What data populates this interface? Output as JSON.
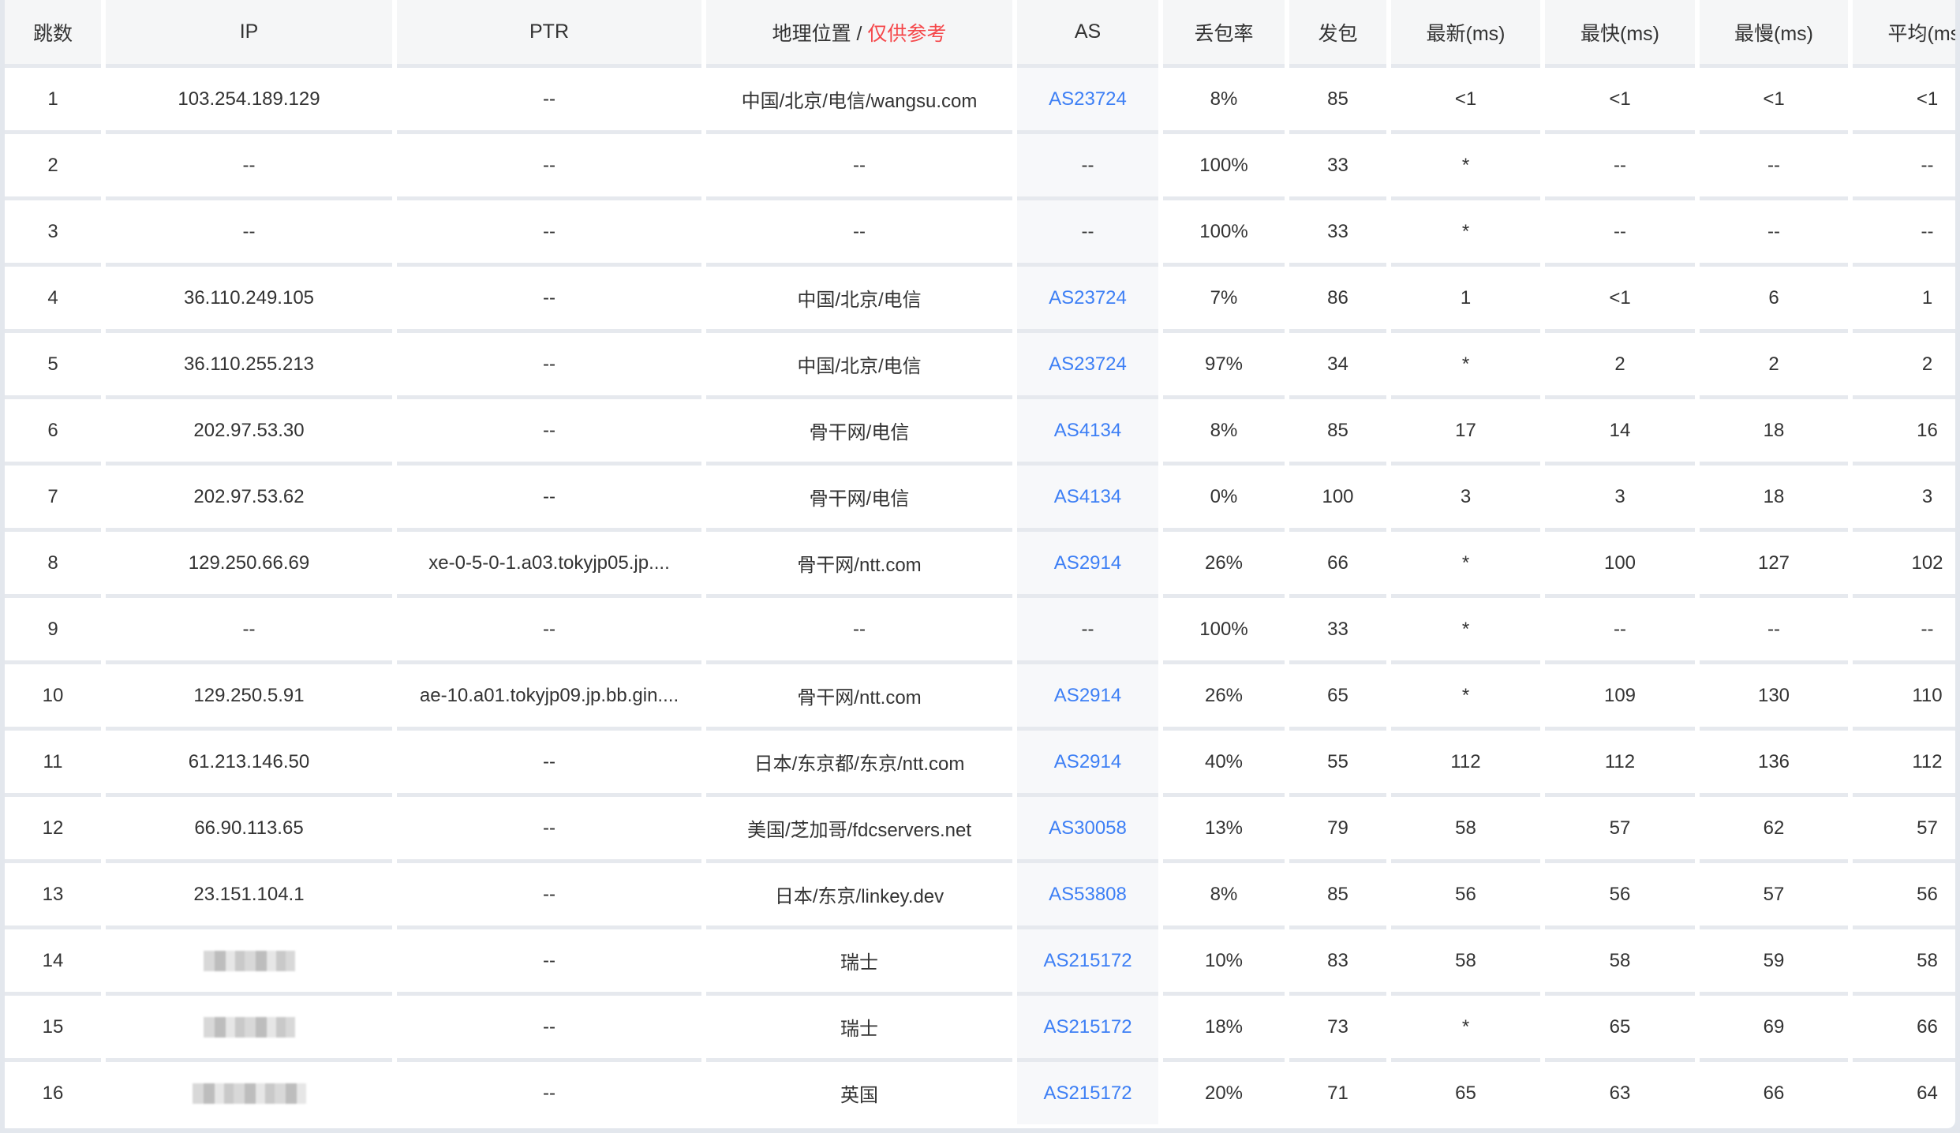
{
  "headers": {
    "hop": "跳数",
    "ip": "IP",
    "ptr": "PTR",
    "geo": "地理位置 /",
    "geo_note": "仅供参考",
    "as": "AS",
    "loss": "丢包率",
    "sent": "发包",
    "last": "最新(ms)",
    "best": "最快(ms)",
    "worst": "最慢(ms)",
    "avg": "平均(ms)"
  },
  "colors": {
    "link": "#3d7ff5",
    "note": "#f5484b"
  },
  "rows": [
    {
      "hop": "1",
      "ip": "103.254.189.129",
      "ptr": "--",
      "geo": "中国/北京/电信/wangsu.com",
      "as": "AS23724",
      "loss": "8%",
      "sent": "85",
      "last": "<1",
      "best": "<1",
      "worst": "<1",
      "avg": "<1"
    },
    {
      "hop": "2",
      "ip": "--",
      "ptr": "--",
      "geo": "--",
      "as": "--",
      "loss": "100%",
      "sent": "33",
      "last": "*",
      "best": "--",
      "worst": "--",
      "avg": "--"
    },
    {
      "hop": "3",
      "ip": "--",
      "ptr": "--",
      "geo": "--",
      "as": "--",
      "loss": "100%",
      "sent": "33",
      "last": "*",
      "best": "--",
      "worst": "--",
      "avg": "--"
    },
    {
      "hop": "4",
      "ip": "36.110.249.105",
      "ptr": "--",
      "geo": "中国/北京/电信",
      "as": "AS23724",
      "loss": "7%",
      "sent": "86",
      "last": "1",
      "best": "<1",
      "worst": "6",
      "avg": "1"
    },
    {
      "hop": "5",
      "ip": "36.110.255.213",
      "ptr": "--",
      "geo": "中国/北京/电信",
      "as": "AS23724",
      "loss": "97%",
      "sent": "34",
      "last": "*",
      "best": "2",
      "worst": "2",
      "avg": "2"
    },
    {
      "hop": "6",
      "ip": "202.97.53.30",
      "ptr": "--",
      "geo": "骨干网/电信",
      "as": "AS4134",
      "loss": "8%",
      "sent": "85",
      "last": "17",
      "best": "14",
      "worst": "18",
      "avg": "16"
    },
    {
      "hop": "7",
      "ip": "202.97.53.62",
      "ptr": "--",
      "geo": "骨干网/电信",
      "as": "AS4134",
      "loss": "0%",
      "sent": "100",
      "last": "3",
      "best": "3",
      "worst": "18",
      "avg": "3"
    },
    {
      "hop": "8",
      "ip": "129.250.66.69",
      "ptr": "xe-0-5-0-1.a03.tokyjp05.jp....",
      "geo": "骨干网/ntt.com",
      "as": "AS2914",
      "loss": "26%",
      "sent": "66",
      "last": "*",
      "best": "100",
      "worst": "127",
      "avg": "102"
    },
    {
      "hop": "9",
      "ip": "--",
      "ptr": "--",
      "geo": "--",
      "as": "--",
      "loss": "100%",
      "sent": "33",
      "last": "*",
      "best": "--",
      "worst": "--",
      "avg": "--"
    },
    {
      "hop": "10",
      "ip": "129.250.5.91",
      "ptr": "ae-10.a01.tokyjp09.jp.bb.gin....",
      "geo": "骨干网/ntt.com",
      "as": "AS2914",
      "loss": "26%",
      "sent": "65",
      "last": "*",
      "best": "109",
      "worst": "130",
      "avg": "110"
    },
    {
      "hop": "11",
      "ip": "61.213.146.50",
      "ptr": "--",
      "geo": "日本/东京都/东京/ntt.com",
      "as": "AS2914",
      "loss": "40%",
      "sent": "55",
      "last": "112",
      "best": "112",
      "worst": "136",
      "avg": "112"
    },
    {
      "hop": "12",
      "ip": "66.90.113.65",
      "ptr": "--",
      "geo": "美国/芝加哥/fdcservers.net",
      "as": "AS30058",
      "loss": "13%",
      "sent": "79",
      "last": "58",
      "best": "57",
      "worst": "62",
      "avg": "57"
    },
    {
      "hop": "13",
      "ip": "23.151.104.1",
      "ptr": "--",
      "geo": "日本/东京/linkey.dev",
      "as": "AS53808",
      "loss": "8%",
      "sent": "85",
      "last": "56",
      "best": "56",
      "worst": "57",
      "avg": "56"
    },
    {
      "hop": "14",
      "ip": "",
      "ip_redacted": true,
      "ptr": "--",
      "geo": "瑞士",
      "as": "AS215172",
      "loss": "10%",
      "sent": "83",
      "last": "58",
      "best": "58",
      "worst": "59",
      "avg": "58"
    },
    {
      "hop": "15",
      "ip": "",
      "ip_redacted": true,
      "ptr": "--",
      "geo": "瑞士",
      "as": "AS215172",
      "loss": "18%",
      "sent": "73",
      "last": "*",
      "best": "65",
      "worst": "69",
      "avg": "66"
    },
    {
      "hop": "16",
      "ip": "",
      "ip_redacted": true,
      "ptr": "--",
      "geo": "英国",
      "as": "AS215172",
      "loss": "20%",
      "sent": "71",
      "last": "65",
      "best": "63",
      "worst": "66",
      "avg": "64"
    }
  ]
}
